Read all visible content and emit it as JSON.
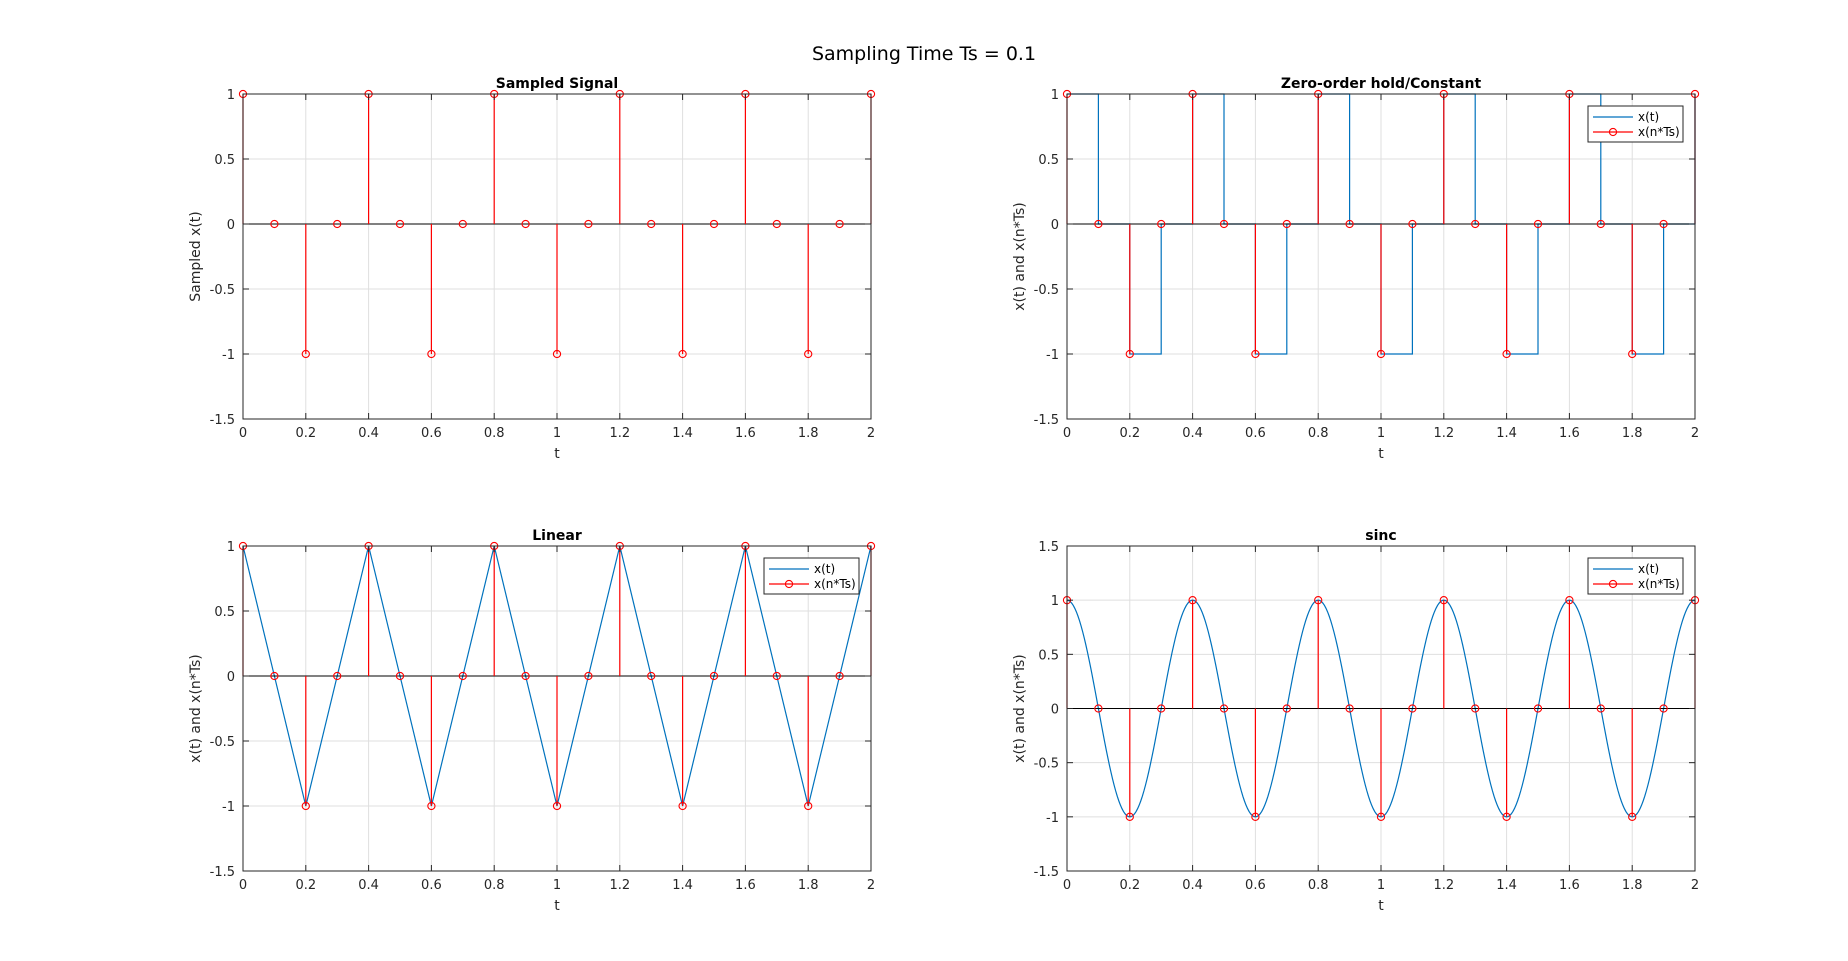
{
  "figure": {
    "suptitle": "Sampling Time Ts = 0.1"
  },
  "colors": {
    "signal": "#0072BD",
    "samples": "#FF0000",
    "grid": "#DFDFDF",
    "axis": "#262626",
    "legend_box": "#262626"
  },
  "chart_data": [
    {
      "type": "stem",
      "title": "Sampled Signal",
      "xlabel": "t",
      "ylabel": "Sampled x(t)",
      "xlim": [
        0,
        2
      ],
      "ylim": [
        -1.5,
        1
      ],
      "xticks": [
        "0",
        "0.2",
        "0.4",
        "0.6",
        "0.8",
        "1",
        "1.2",
        "1.4",
        "1.6",
        "1.8",
        "2"
      ],
      "yticks": [
        "-1.5",
        "-1",
        "-0.5",
        "0",
        "0.5",
        "1"
      ],
      "grid": true,
      "legend": null,
      "reconstruction": null,
      "samples": {
        "x": [
          0,
          0.1,
          0.2,
          0.3,
          0.4,
          0.5,
          0.6,
          0.7,
          0.8,
          0.9,
          1.0,
          1.1,
          1.2,
          1.3,
          1.4,
          1.5,
          1.6,
          1.7,
          1.8,
          1.9,
          2.0
        ],
        "y": [
          1,
          0,
          -1,
          0,
          1,
          0,
          -1,
          0,
          1,
          0,
          -1,
          0,
          1,
          0,
          -1,
          0,
          1,
          0,
          -1,
          0,
          1
        ]
      }
    },
    {
      "type": "stem+line",
      "title": "Zero-order hold/Constant",
      "xlabel": "t",
      "ylabel": "x(t) and x(n*Ts)",
      "xlim": [
        0,
        2
      ],
      "ylim": [
        -1.5,
        1
      ],
      "xticks": [
        "0",
        "0.2",
        "0.4",
        "0.6",
        "0.8",
        "1",
        "1.2",
        "1.4",
        "1.6",
        "1.8",
        "2"
      ],
      "yticks": [
        "-1.5",
        "-1",
        "-0.5",
        "0",
        "0.5",
        "1"
      ],
      "grid": true,
      "legend": {
        "entries": [
          "x(t)",
          "x(n*Ts)"
        ],
        "location": "top-right"
      },
      "reconstruction": "zoh",
      "samples": {
        "x": [
          0,
          0.1,
          0.2,
          0.3,
          0.4,
          0.5,
          0.6,
          0.7,
          0.8,
          0.9,
          1.0,
          1.1,
          1.2,
          1.3,
          1.4,
          1.5,
          1.6,
          1.7,
          1.8,
          1.9,
          2.0
        ],
        "y": [
          1,
          0,
          -1,
          0,
          1,
          0,
          -1,
          0,
          1,
          0,
          -1,
          0,
          1,
          0,
          -1,
          0,
          1,
          0,
          -1,
          0,
          1
        ]
      }
    },
    {
      "type": "stem+line",
      "title": "Linear",
      "xlabel": "t",
      "ylabel": "x(t) and x(n*Ts)",
      "xlim": [
        0,
        2
      ],
      "ylim": [
        -1.5,
        1
      ],
      "xticks": [
        "0",
        "0.2",
        "0.4",
        "0.6",
        "0.8",
        "1",
        "1.2",
        "1.4",
        "1.6",
        "1.8",
        "2"
      ],
      "yticks": [
        "-1.5",
        "-1",
        "-0.5",
        "0",
        "0.5",
        "1"
      ],
      "grid": true,
      "legend": {
        "entries": [
          "x(t)",
          "x(n*Ts)"
        ],
        "location": "top-right"
      },
      "reconstruction": "linear",
      "samples": {
        "x": [
          0,
          0.1,
          0.2,
          0.3,
          0.4,
          0.5,
          0.6,
          0.7,
          0.8,
          0.9,
          1.0,
          1.1,
          1.2,
          1.3,
          1.4,
          1.5,
          1.6,
          1.7,
          1.8,
          1.9,
          2.0
        ],
        "y": [
          1,
          0,
          -1,
          0,
          1,
          0,
          -1,
          0,
          1,
          0,
          -1,
          0,
          1,
          0,
          -1,
          0,
          1,
          0,
          -1,
          0,
          1
        ]
      }
    },
    {
      "type": "stem+line",
      "title": "sinc",
      "xlabel": "t",
      "ylabel": "x(t) and x(n*Ts)",
      "xlim": [
        0,
        2
      ],
      "ylim": [
        -1.5,
        1.5
      ],
      "xticks": [
        "0",
        "0.2",
        "0.4",
        "0.6",
        "0.8",
        "1",
        "1.2",
        "1.4",
        "1.6",
        "1.8",
        "2"
      ],
      "yticks": [
        "-1.5",
        "-1",
        "-0.5",
        "0",
        "0.5",
        "1",
        "1.5"
      ],
      "grid": true,
      "legend": {
        "entries": [
          "x(t)",
          "x(n*Ts)"
        ],
        "location": "top-right"
      },
      "reconstruction": "cosine",
      "samples": {
        "x": [
          0,
          0.1,
          0.2,
          0.3,
          0.4,
          0.5,
          0.6,
          0.7,
          0.8,
          0.9,
          1.0,
          1.1,
          1.2,
          1.3,
          1.4,
          1.5,
          1.6,
          1.7,
          1.8,
          1.9,
          2.0
        ],
        "y": [
          1,
          0,
          -1,
          0,
          1,
          0,
          -1,
          0,
          1,
          0,
          -1,
          0,
          1,
          0,
          -1,
          0,
          1,
          0,
          -1,
          0,
          1
        ]
      }
    }
  ]
}
